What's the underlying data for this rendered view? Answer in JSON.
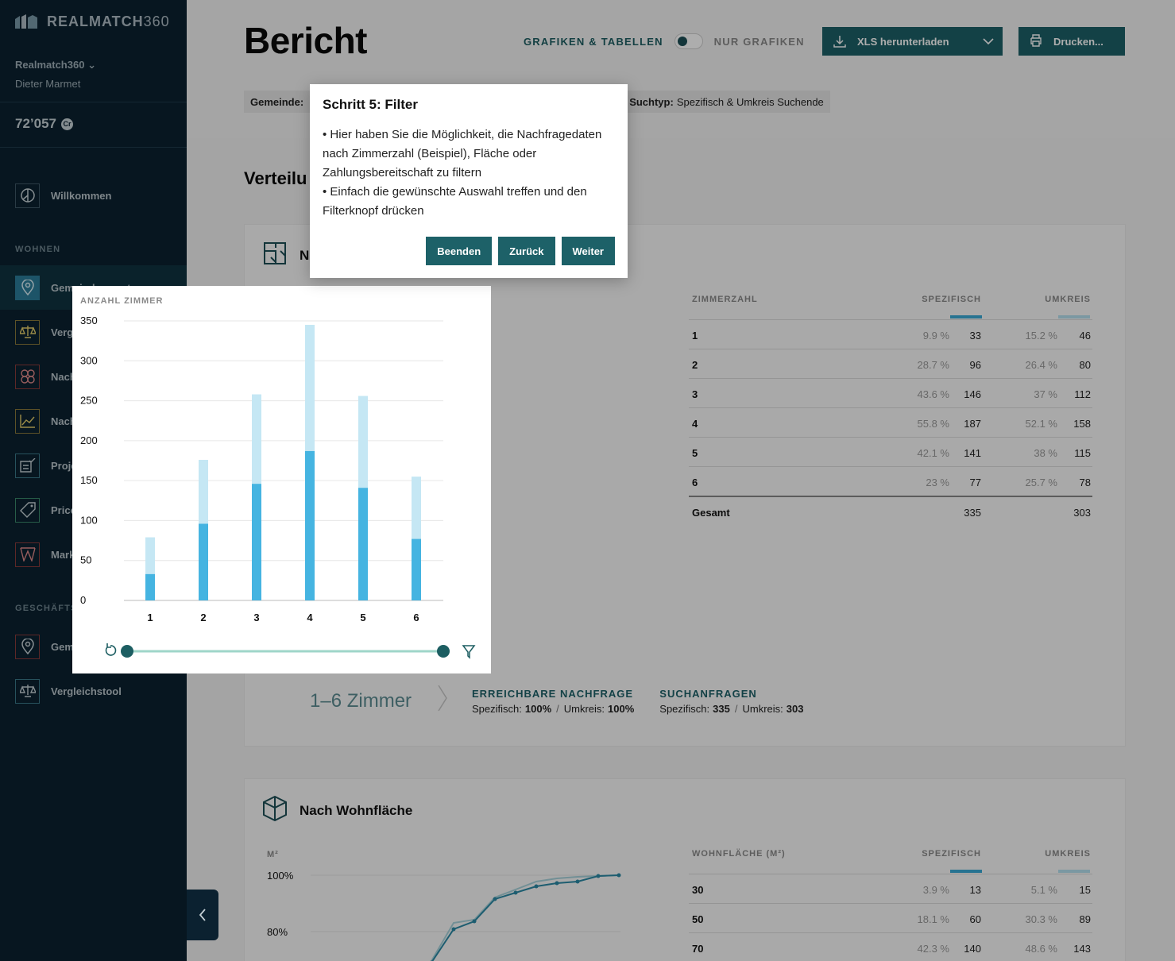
{
  "sidebar": {
    "logo_text": "REALMATCH",
    "logo_num": "360",
    "org": "Realmatch360",
    "user": "Dieter Marmet",
    "credits": "72’057",
    "credit_symbol": "Cr",
    "welcome": "Willkommen",
    "section_wohnen": "WOHNEN",
    "wohnen_items": [
      "Gemeindereport",
      "Vergleichstool",
      "Nachfragemilieus",
      "Nachfrageindex",
      "Projektcheck",
      "Pricesetter",
      "Marktanspannung"
    ],
    "section_geschaeft": "GESCHÄFTSFLÄCHEN",
    "geschaeft_items": [
      "Gemeindereport",
      "Vergleichstool"
    ]
  },
  "header": {
    "title": "Bericht",
    "toggle_on": "GRAFIKEN & TABELLEN",
    "toggle_off": "NUR GRAFIKEN",
    "xls_label": "XLS herunterladen",
    "print_label": "Drucken...",
    "filter_gemeinde_label": "Gemeinde:",
    "filter_suchtyp_label": "Suchtyp:",
    "filter_suchtyp_value": "Spezifisch & Umkreis Suchende"
  },
  "section_title": "Verteilu",
  "card1": {
    "title_partial": "N"
  },
  "card2": {
    "title": "Nach Wohnfläche"
  },
  "tooltip": {
    "title": "Schritt 5: Filter",
    "line1": "• Hier haben Sie die Möglichkeit, die Nachfragedaten nach Zimmerzahl (Beispiel), Fläche oder Zahlungsbereitschaft zu filtern",
    "line2": "• Einfach die gewünschte Auswahl treffen und den Filterknopf drücken",
    "btn_end": "Beenden",
    "btn_back": "Zurück",
    "btn_next": "Weiter"
  },
  "chart_data": [
    {
      "type": "bar",
      "ylabel": "ANZAHL ZIMMER",
      "categories": [
        "1",
        "2",
        "3",
        "4",
        "5",
        "6"
      ],
      "series": [
        {
          "name": "",
          "values": [
            33,
            96,
            146,
            187,
            141,
            77
          ]
        },
        {
          "name": "",
          "values": [
            46,
            80,
            112,
            158,
            115,
            78
          ]
        }
      ],
      "stacked": true,
      "ylim": [
        0,
        350
      ],
      "yticks": [
        0,
        50,
        100,
        150,
        200,
        250,
        300,
        350
      ],
      "colors": [
        "#45b4e1",
        "#c5e7f4"
      ]
    },
    {
      "type": "line",
      "ylabel": "M²",
      "yticks_visible": [
        "100%",
        "80%"
      ]
    }
  ],
  "table1": {
    "headers": [
      "ZIMMERZAHL",
      "SPEZIFISCH",
      "UMKREIS"
    ],
    "rows": [
      [
        "1",
        "9.9 %",
        "33",
        "15.2 %",
        "46"
      ],
      [
        "2",
        "28.7 %",
        "96",
        "26.4 %",
        "80"
      ],
      [
        "3",
        "43.6 %",
        "146",
        "37 %",
        "112"
      ],
      [
        "4",
        "55.8 %",
        "187",
        "52.1 %",
        "158"
      ],
      [
        "5",
        "42.1 %",
        "141",
        "38 %",
        "115"
      ],
      [
        "6",
        "23 %",
        "77",
        "25.7 %",
        "78"
      ]
    ],
    "total": [
      "Gesamt",
      "335",
      "303"
    ]
  },
  "table2": {
    "headers": [
      "WOHNFLÄCHE (M²)",
      "SPEZIFISCH",
      "UMKREIS"
    ],
    "rows": [
      [
        "30",
        "3.9 %",
        "13",
        "5.1 %",
        "15"
      ],
      [
        "50",
        "18.1 %",
        "60",
        "30.3 %",
        "89"
      ],
      [
        "70",
        "42.3 %",
        "140",
        "48.6 %",
        "143"
      ]
    ]
  },
  "summary": {
    "range": "1–6 Zimmer",
    "nachfrage_title": "ERREICHBARE NACHFRAGE",
    "spez_label": "Spezifisch:",
    "spez_value": "100%",
    "umk_label": "Umkreis:",
    "umk_value": "100%",
    "such_title": "SUCHANFRAGEN",
    "such_spez_value": "335",
    "such_umk_value": "303"
  }
}
